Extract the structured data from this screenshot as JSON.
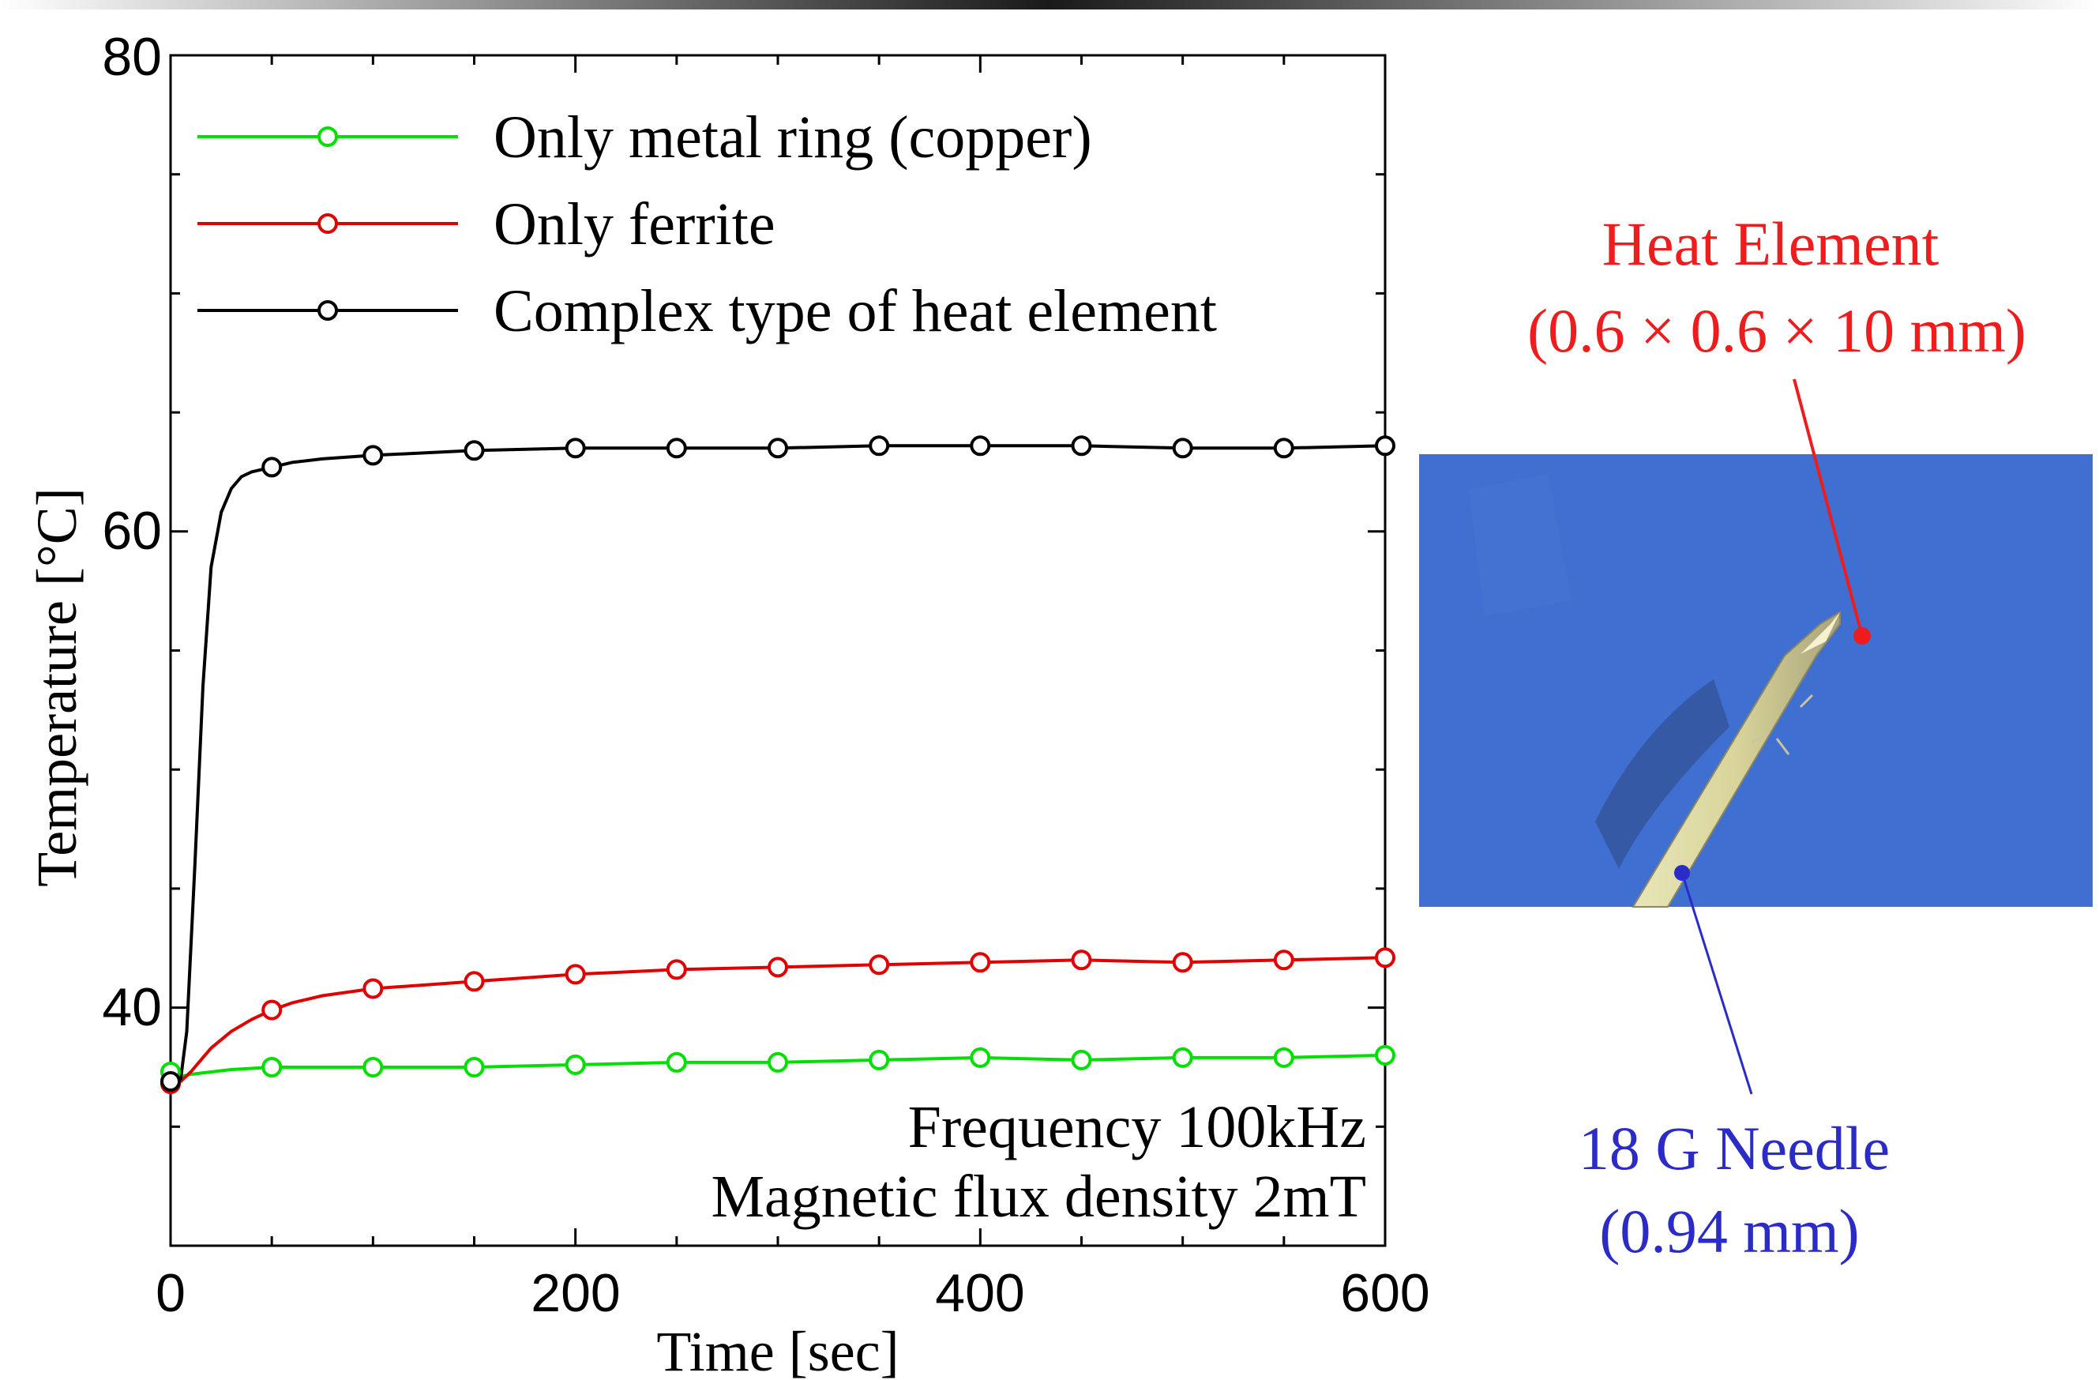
{
  "chart_data": {
    "type": "line",
    "xlabel": "Time [sec]",
    "ylabel": "Temperature [°C]",
    "xlim": [
      0,
      600
    ],
    "ylim": [
      30,
      80
    ],
    "xticks": [
      0,
      200,
      400,
      600
    ],
    "yticks": [
      40,
      60,
      80
    ],
    "grid": false,
    "legend_position": "top-left",
    "series": [
      {
        "name": "Only metal ring (copper)",
        "color": "#00e000",
        "marker_x": [
          0,
          50,
          100,
          150,
          200,
          250,
          300,
          350,
          400,
          450,
          500,
          550,
          600
        ],
        "marker_y": [
          37.3,
          37.5,
          37.5,
          37.5,
          37.6,
          37.7,
          37.7,
          37.8,
          37.9,
          37.8,
          37.9,
          37.9,
          38.0
        ],
        "x": [
          0,
          5,
          10,
          20,
          30,
          50,
          75,
          100,
          150,
          200,
          250,
          300,
          350,
          400,
          450,
          500,
          550,
          600
        ],
        "y": [
          37.3,
          37.1,
          37.2,
          37.3,
          37.4,
          37.5,
          37.5,
          37.5,
          37.5,
          37.6,
          37.7,
          37.7,
          37.8,
          37.9,
          37.8,
          37.9,
          37.9,
          38.0
        ]
      },
      {
        "name": "Only ferrite",
        "color": "#e00000",
        "marker_x": [
          0,
          50,
          100,
          150,
          200,
          250,
          300,
          350,
          400,
          450,
          500,
          550,
          600
        ],
        "marker_y": [
          36.8,
          39.9,
          40.8,
          41.1,
          41.4,
          41.6,
          41.7,
          41.8,
          41.9,
          42.0,
          41.9,
          42.0,
          42.1
        ],
        "x": [
          0,
          5,
          10,
          15,
          20,
          30,
          40,
          50,
          60,
          75,
          100,
          125,
          150,
          200,
          250,
          300,
          350,
          400,
          450,
          500,
          550,
          600
        ],
        "y": [
          36.8,
          36.9,
          37.3,
          37.8,
          38.3,
          39.0,
          39.5,
          39.9,
          40.2,
          40.5,
          40.8,
          40.95,
          41.1,
          41.4,
          41.6,
          41.7,
          41.8,
          41.9,
          42.0,
          41.9,
          42.0,
          42.1
        ]
      },
      {
        "name": "Complex type of heat element",
        "color": "#000000",
        "marker_x": [
          0,
          50,
          100,
          150,
          200,
          250,
          300,
          350,
          400,
          450,
          500,
          550,
          600
        ],
        "marker_y": [
          36.9,
          62.7,
          63.2,
          63.4,
          63.5,
          63.5,
          63.5,
          63.6,
          63.6,
          63.6,
          63.5,
          63.5,
          63.6
        ],
        "x": [
          0,
          5,
          8,
          12,
          16,
          20,
          25,
          30,
          35,
          40,
          50,
          60,
          75,
          100,
          150,
          200,
          250,
          300,
          350,
          400,
          450,
          500,
          550,
          600
        ],
        "y": [
          36.9,
          37.0,
          39.0,
          46.0,
          53.5,
          58.5,
          60.8,
          61.8,
          62.3,
          62.5,
          62.7,
          62.9,
          63.05,
          63.2,
          63.4,
          63.5,
          63.5,
          63.5,
          63.6,
          63.6,
          63.6,
          63.5,
          63.5,
          63.6
        ]
      }
    ],
    "annotations": [
      "Frequency 100kHz",
      "Magnetic flux density 2mT"
    ]
  },
  "photo": {
    "heat_element_label": "Heat Element",
    "heat_element_size": "(0.6 × 0.6 × 10 mm)",
    "needle_label": "18 G Needle",
    "needle_size": "(0.94 mm)",
    "heat_color": "#ee1c1c",
    "needle_color": "#2b2bc8",
    "background_color": "#3f6fd0"
  }
}
